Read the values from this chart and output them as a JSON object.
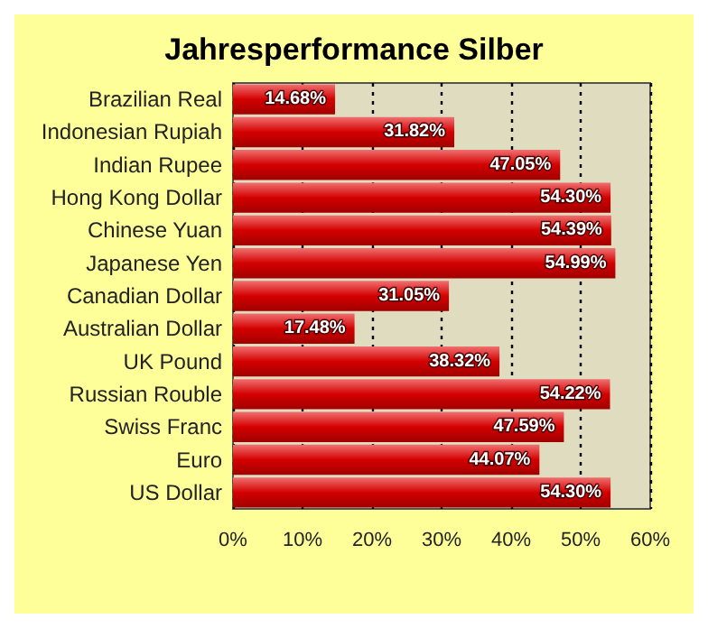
{
  "chart_data": {
    "type": "bar",
    "orientation": "horizontal",
    "title": "Jahresperformance Silber",
    "categories": [
      "Brazilian Real",
      "Indonesian Rupiah",
      "Indian Rupee",
      "Hong Kong Dollar",
      "Chinese Yuan",
      "Japanese Yen",
      "Canadian Dollar",
      "Australian Dollar",
      "UK Pound",
      "Russian Rouble",
      "Swiss Franc",
      "Euro",
      "US Dollar"
    ],
    "values": [
      14.68,
      31.82,
      47.05,
      54.3,
      54.39,
      54.99,
      31.05,
      17.48,
      38.32,
      54.22,
      47.59,
      44.07,
      54.3
    ],
    "value_labels": [
      "14.68%",
      "31.82%",
      "47.05%",
      "54.30%",
      "54.39%",
      "54.99%",
      "31.05%",
      "17.48%",
      "38.32%",
      "54.22%",
      "47.59%",
      "44.07%",
      "54.30%"
    ],
    "color": "#d40000",
    "xlim": [
      0,
      60
    ],
    "xticks": [
      {
        "value": 0,
        "label": "0%"
      },
      {
        "value": 10,
        "label": "10%"
      },
      {
        "value": 20,
        "label": "20%"
      },
      {
        "value": 30,
        "label": "30%"
      },
      {
        "value": 40,
        "label": "40%"
      },
      {
        "value": 50,
        "label": "50%"
      },
      {
        "value": 60,
        "label": "60%"
      }
    ],
    "grid": "x"
  }
}
